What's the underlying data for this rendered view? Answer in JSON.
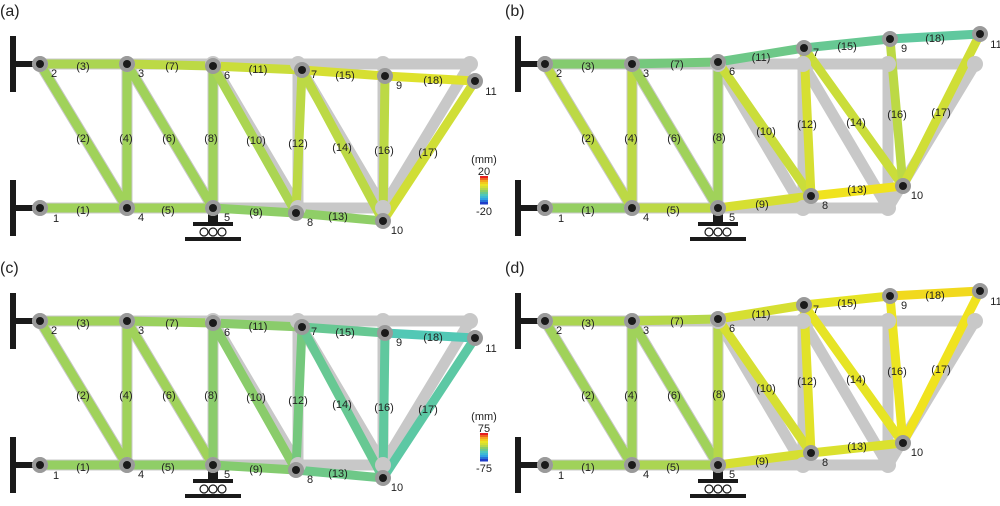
{
  "panels": [
    {
      "label": "(a)",
      "colorbar": {
        "unit": "(mm)",
        "max": "20",
        "min": "-20"
      },
      "roller": true
    },
    {
      "label": "(b)",
      "roller": true
    },
    {
      "label": "(c)",
      "colorbar": {
        "unit": "(mm)",
        "max": "75",
        "min": "-75"
      },
      "roller": true
    },
    {
      "label": "(d)",
      "roller": true
    }
  ],
  "node_labels": [
    "1",
    "2",
    "3",
    "4",
    "5",
    "6",
    "7",
    "8",
    "9",
    "10",
    "11"
  ],
  "member_labels": [
    "(1)",
    "(2)",
    "(3)",
    "(4)",
    "(5)",
    "(6)",
    "(7)",
    "(8)",
    "(9)",
    "(10)",
    "(11)",
    "(12)",
    "(13)",
    "(14)",
    "(15)",
    "(16)",
    "(17)",
    "(18)"
  ],
  "colors": {
    "undeformed": "#c8c8c8",
    "node_ring": "#9a9a9a",
    "node_core": "#1a1a1a",
    "support": "#1a1a1a",
    "colormap": [
      "#1e3cc8",
      "#2ea0e6",
      "#46c8c8",
      "#78c878",
      "#c8dc3c",
      "#f0e61e",
      "#f5a01e",
      "#e61e1e"
    ]
  },
  "member_color_levels": {
    "a": [
      0.5,
      0.5,
      0.52,
      0.5,
      0.5,
      0.5,
      0.55,
      0.5,
      0.47,
      0.52,
      0.58,
      0.55,
      0.47,
      0.55,
      0.62,
      0.55,
      0.6,
      0.65
    ],
    "b": [
      0.48,
      0.55,
      0.45,
      0.55,
      0.55,
      0.5,
      0.42,
      0.5,
      0.62,
      0.58,
      0.4,
      0.62,
      0.72,
      0.58,
      0.38,
      0.55,
      0.6,
      0.36
    ],
    "c": [
      0.48,
      0.5,
      0.5,
      0.5,
      0.47,
      0.5,
      0.49,
      0.46,
      0.45,
      0.46,
      0.46,
      0.42,
      0.4,
      0.38,
      0.38,
      0.36,
      0.35,
      0.32
    ],
    "d": [
      0.5,
      0.5,
      0.52,
      0.5,
      0.52,
      0.5,
      0.54,
      0.54,
      0.62,
      0.62,
      0.62,
      0.66,
      0.64,
      0.68,
      0.68,
      0.7,
      0.72,
      0.74
    ]
  }
}
